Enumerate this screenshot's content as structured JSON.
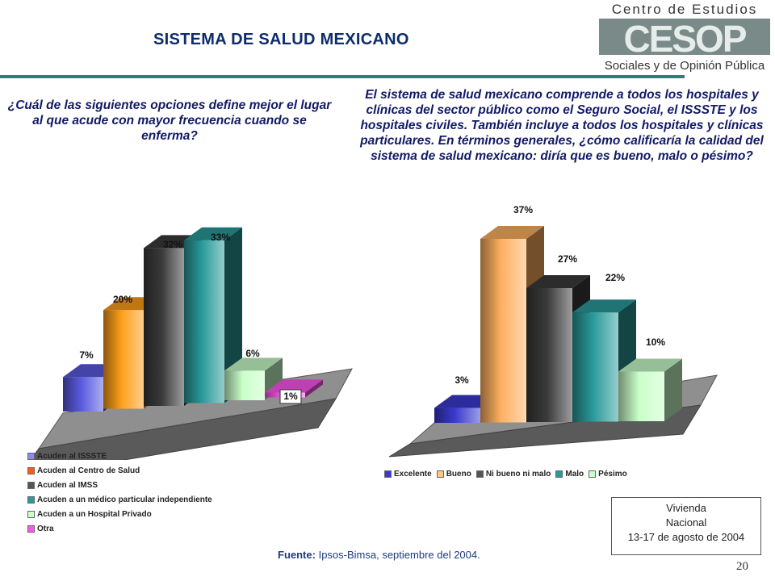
{
  "page": {
    "title": "SISTEMA DE SALUD MEXICANO",
    "page_number": "20",
    "source_label": "Fuente:",
    "source_text": "Ipsos-Bimsa, septiembre del 2004.",
    "info_lines": [
      "Vivienda",
      "Nacional",
      "13-17 de agosto de 2004"
    ]
  },
  "logo": {
    "top_text": "Centro de Estudios",
    "mark": "CESOP",
    "bottom_text": "Sociales y de Opinión Pública"
  },
  "chart_data": [
    {
      "type": "bar",
      "title": "¿Cuál de las siguientes opciones define mejor el lugar al que acude con mayor frecuencia cuando se enferma?",
      "categories": [
        "Acuden al ISSSTE",
        "Acuden al Centro de Salud",
        "Acuden al IMSS",
        "Acuden a un médico particular independiente",
        "Acuden a un Hospital Privado",
        "Otra"
      ],
      "values": [
        7,
        20,
        32,
        33,
        6,
        1
      ],
      "labels": [
        "7%",
        "20%",
        "32%",
        "33%",
        "6%",
        "1%"
      ],
      "colors": [
        "#5a5ae0",
        "#ff9f1a",
        "#3a3a3a",
        "#2a9a9a",
        "#c9ffc9",
        "#ff55ee"
      ],
      "legend_colors": [
        "#8a8af0",
        "#ff5a10",
        "#555555",
        "#2a9a9a",
        "#ccffcc",
        "#ff55ee"
      ],
      "ylim": [
        0,
        35
      ],
      "legend": "bottom"
    },
    {
      "type": "bar",
      "title": "El sistema de salud mexicano comprende a todos los hospitales y clínicas del sector público como el Seguro Social, el ISSSTE y los hospitales civiles. También incluye a todos los hospitales y clínicas particulares. En términos generales, ¿cómo calificaría la calidad del sistema de salud mexicano: diría que es bueno, malo o pésimo?",
      "categories": [
        "Excelente",
        "Bueno",
        "Ni bueno ni malo",
        "Malo",
        "Pésimo"
      ],
      "values": [
        3,
        37,
        27,
        22,
        10
      ],
      "labels": [
        "3%",
        "37%",
        "27%",
        "22%",
        "10%"
      ],
      "colors": [
        "#3a3ad0",
        "#ffb060",
        "#3a3a3a",
        "#2a9a9a",
        "#c9ffc9"
      ],
      "legend_colors": [
        "#3a3ad0",
        "#ffc880",
        "#555555",
        "#2a9a9a",
        "#ccffcc"
      ],
      "ylim": [
        0,
        40
      ],
      "legend": "bottom"
    }
  ]
}
